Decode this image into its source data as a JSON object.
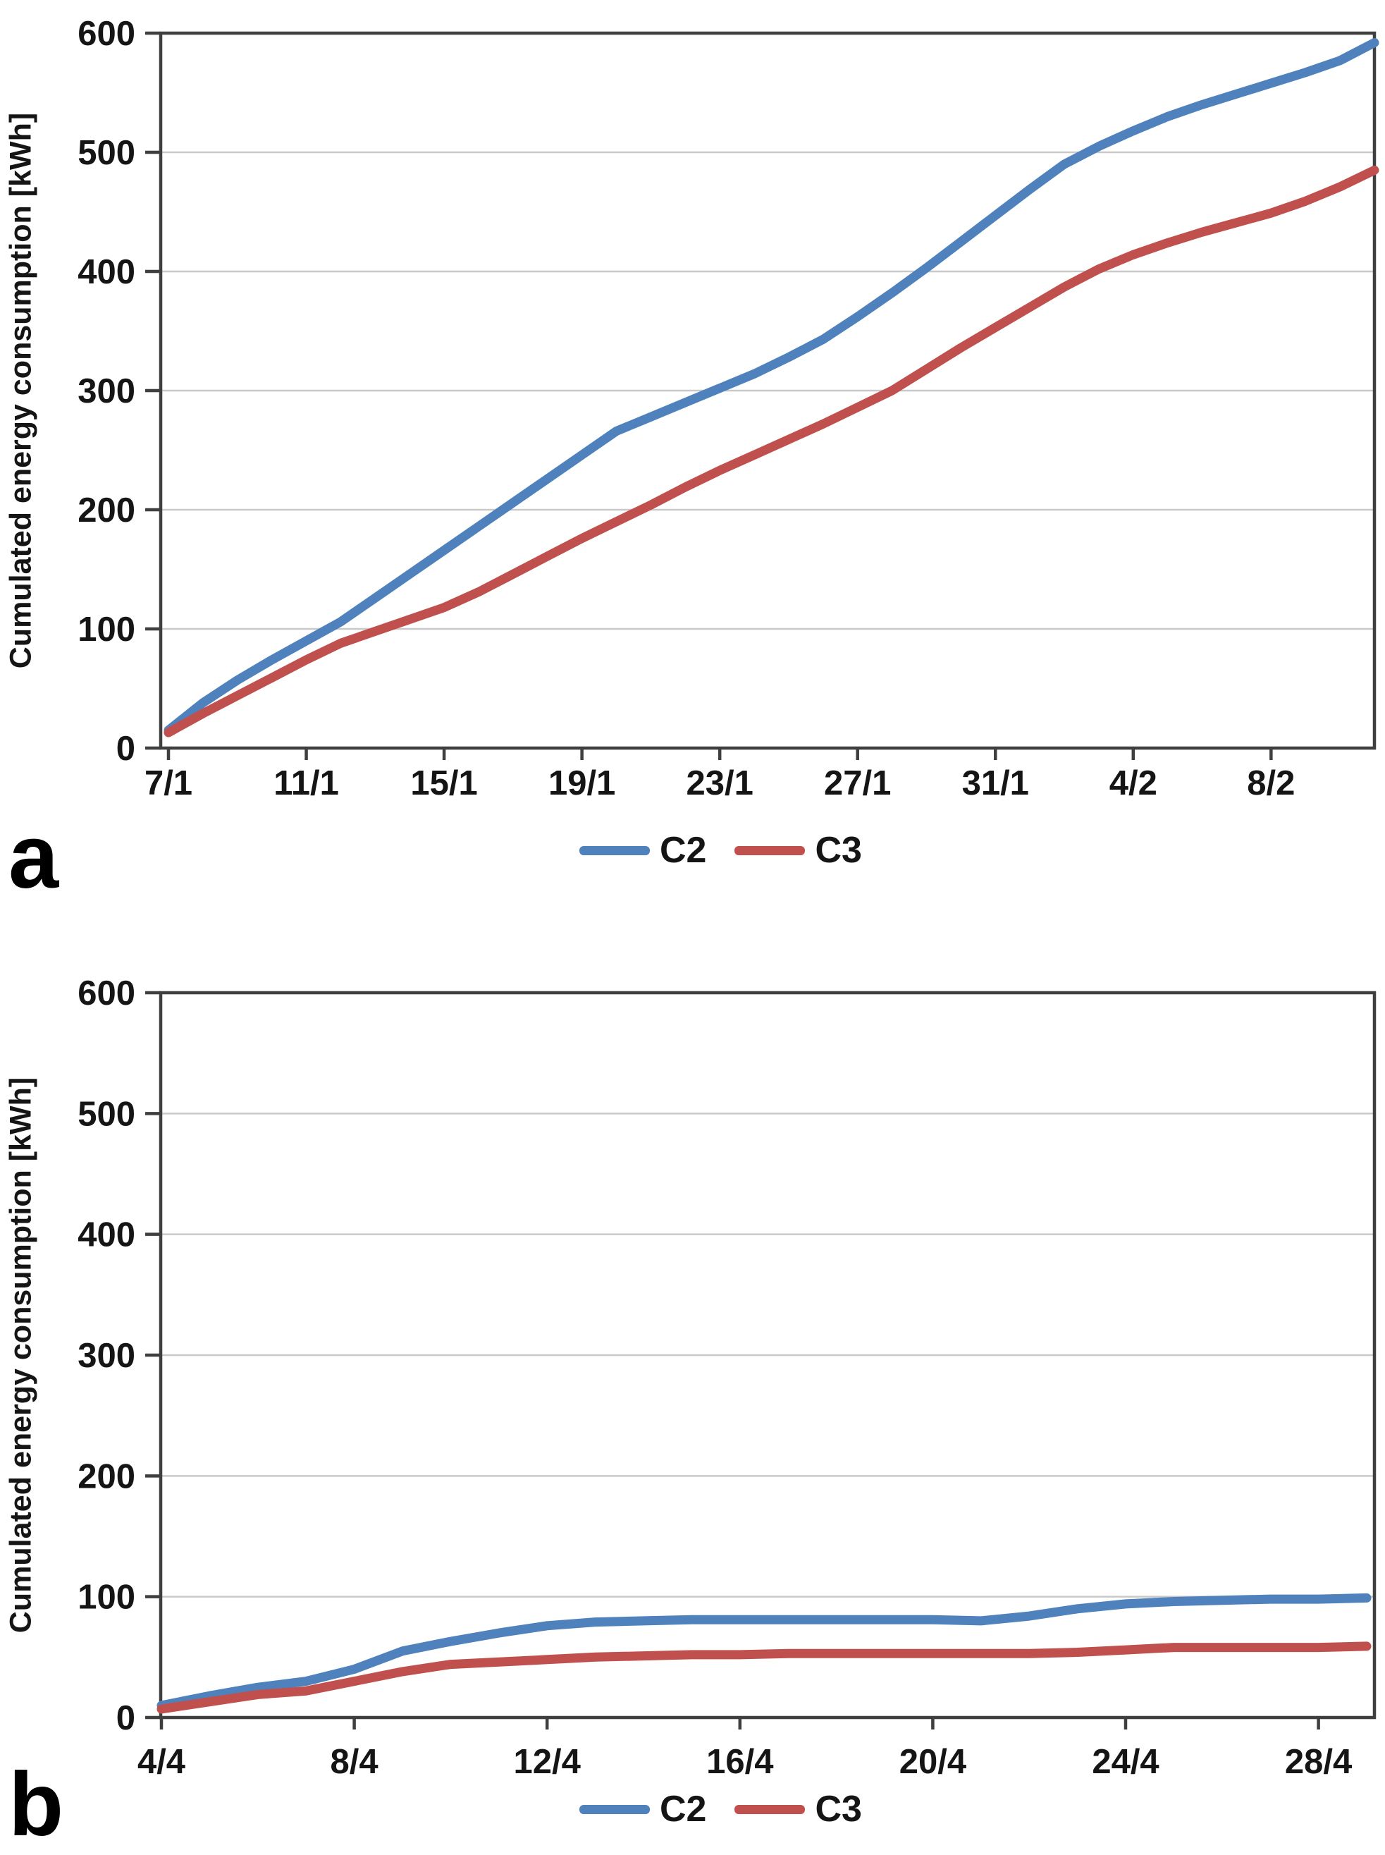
{
  "figure": {
    "panel_a_letter": "a",
    "panel_b_letter": "b"
  },
  "style": {
    "c2_color": "#4f81bd",
    "c3_color": "#c0504d",
    "grid_color": "#c9c9c9",
    "axis_color": "#3f3f3f",
    "text_color": "#151515",
    "background": "#ffffff"
  },
  "chart_data": [
    {
      "id": "a",
      "type": "line",
      "title": "",
      "xlabel": "",
      "ylabel": "Cumulated energy consumption [kWh]",
      "ylim": [
        0,
        600
      ],
      "yticks": [
        0,
        100,
        200,
        300,
        400,
        500,
        600
      ],
      "grid": "horizontal",
      "legend_position": "bottom-center",
      "x_tick_labels": [
        "7/1",
        "11/1",
        "15/1",
        "19/1",
        "23/1",
        "27/1",
        "31/1",
        "4/2",
        "8/2"
      ],
      "x_tick_days": [
        0,
        4,
        8,
        12,
        16,
        20,
        24,
        28,
        32
      ],
      "x_dates": [
        "7/1",
        "8/1",
        "9/1",
        "10/1",
        "11/1",
        "12/1",
        "13/1",
        "14/1",
        "15/1",
        "16/1",
        "17/1",
        "18/1",
        "19/1",
        "20/1",
        "21/1",
        "22/1",
        "23/1",
        "24/1",
        "25/1",
        "26/1",
        "27/1",
        "28/1",
        "29/1",
        "30/1",
        "31/1",
        "1/2",
        "2/2",
        "3/2",
        "4/2",
        "5/2",
        "6/2",
        "7/2",
        "8/2",
        "9/2",
        "10/2",
        "11/2"
      ],
      "series": [
        {
          "name": "C2",
          "color": "#4f81bd",
          "values": [
            15,
            38,
            57,
            74,
            90,
            106,
            126,
            146,
            166,
            186,
            206,
            226,
            246,
            266,
            278,
            290,
            302,
            314,
            328,
            343,
            362,
            382,
            403,
            425,
            447,
            469,
            490,
            505,
            518,
            530,
            540,
            549,
            558,
            567,
            577,
            592
          ]
        },
        {
          "name": "C3",
          "color": "#c0504d",
          "values": [
            13,
            29,
            44,
            59,
            74,
            88,
            98,
            108,
            118,
            131,
            146,
            161,
            176,
            190,
            204,
            219,
            233,
            246,
            259,
            272,
            286,
            300,
            318,
            336,
            353,
            370,
            387,
            402,
            414,
            424,
            433,
            441,
            449,
            459,
            471,
            485
          ]
        }
      ]
    },
    {
      "id": "b",
      "type": "line",
      "title": "",
      "xlabel": "",
      "ylabel": "Cumulated energy consumption [kWh]",
      "ylim": [
        0,
        600
      ],
      "yticks": [
        0,
        100,
        200,
        300,
        400,
        500,
        600
      ],
      "grid": "horizontal",
      "legend_position": "bottom-center",
      "x_tick_labels": [
        "4/4",
        "8/4",
        "12/4",
        "16/4",
        "20/4",
        "24/4",
        "28/4"
      ],
      "x_tick_days": [
        0,
        4,
        8,
        12,
        16,
        20,
        24
      ],
      "x_dates": [
        "4/4",
        "5/4",
        "6/4",
        "7/4",
        "8/4",
        "9/4",
        "10/4",
        "11/4",
        "12/4",
        "13/4",
        "14/4",
        "15/4",
        "16/4",
        "17/4",
        "18/4",
        "19/4",
        "20/4",
        "21/4",
        "22/4",
        "23/4",
        "24/4",
        "25/4",
        "26/4",
        "27/4",
        "28/4",
        "29/4"
      ],
      "series": [
        {
          "name": "C2",
          "color": "#4f81bd",
          "values": [
            10,
            18,
            25,
            30,
            40,
            55,
            63,
            70,
            76,
            79,
            80,
            81,
            81,
            81,
            81,
            81,
            81,
            80,
            84,
            90,
            94,
            96,
            97,
            98,
            98,
            99
          ]
        },
        {
          "name": "C3",
          "color": "#c0504d",
          "values": [
            7,
            13,
            19,
            22,
            30,
            38,
            44,
            46,
            48,
            50,
            51,
            52,
            52,
            53,
            53,
            53,
            53,
            53,
            53,
            54,
            56,
            58,
            58,
            58,
            58,
            59
          ]
        }
      ]
    }
  ]
}
